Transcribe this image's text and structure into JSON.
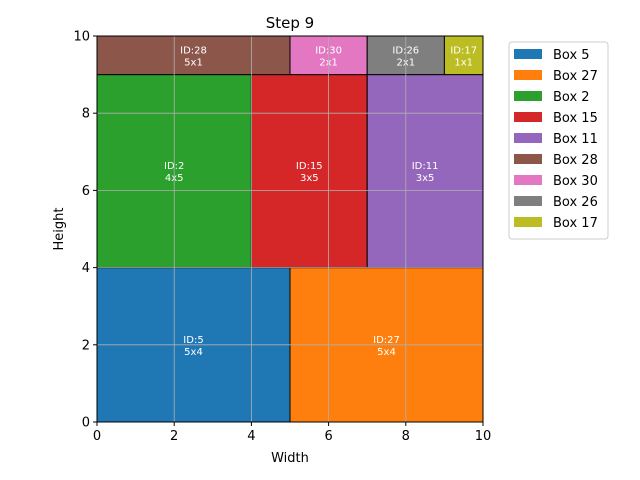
{
  "chart_data": {
    "type": "rect-packing",
    "title": "Step 9",
    "xlabel": "Width",
    "ylabel": "Height",
    "xlim": [
      0,
      10
    ],
    "ylim": [
      0,
      10
    ],
    "xticks": [
      0,
      2,
      4,
      6,
      8,
      10
    ],
    "yticks": [
      0,
      2,
      4,
      6,
      8,
      10
    ],
    "grid": true,
    "legend_position": "outside-upper-right",
    "boxes": [
      {
        "id": 5,
        "legend": "Box 5",
        "id_label": "ID:5",
        "size_label": "5x4",
        "x": 0,
        "y": 0,
        "w": 5,
        "h": 4,
        "color": "#1f77b4"
      },
      {
        "id": 27,
        "legend": "Box 27",
        "id_label": "ID:27",
        "size_label": "5x4",
        "x": 5,
        "y": 0,
        "w": 5,
        "h": 4,
        "color": "#ff7f0e"
      },
      {
        "id": 2,
        "legend": "Box 2",
        "id_label": "ID:2",
        "size_label": "4x5",
        "x": 0,
        "y": 4,
        "w": 4,
        "h": 5,
        "color": "#2ca02c"
      },
      {
        "id": 15,
        "legend": "Box 15",
        "id_label": "ID:15",
        "size_label": "3x5",
        "x": 4,
        "y": 4,
        "w": 3,
        "h": 5,
        "color": "#d62728"
      },
      {
        "id": 11,
        "legend": "Box 11",
        "id_label": "ID:11",
        "size_label": "3x5",
        "x": 7,
        "y": 4,
        "w": 3,
        "h": 5,
        "color": "#9467bd"
      },
      {
        "id": 28,
        "legend": "Box 28",
        "id_label": "ID:28",
        "size_label": "5x1",
        "x": 0,
        "y": 9,
        "w": 5,
        "h": 1,
        "color": "#8c564b"
      },
      {
        "id": 30,
        "legend": "Box 30",
        "id_label": "ID:30",
        "size_label": "2x1",
        "x": 5,
        "y": 9,
        "w": 2,
        "h": 1,
        "color": "#e377c2"
      },
      {
        "id": 26,
        "legend": "Box 26",
        "id_label": "ID:26",
        "size_label": "2x1",
        "x": 7,
        "y": 9,
        "w": 2,
        "h": 1,
        "color": "#7f7f7f"
      },
      {
        "id": 17,
        "legend": "Box 17",
        "id_label": "ID:17",
        "size_label": "1x1",
        "x": 9,
        "y": 9,
        "w": 1,
        "h": 1,
        "color": "#bcbd22"
      }
    ]
  }
}
